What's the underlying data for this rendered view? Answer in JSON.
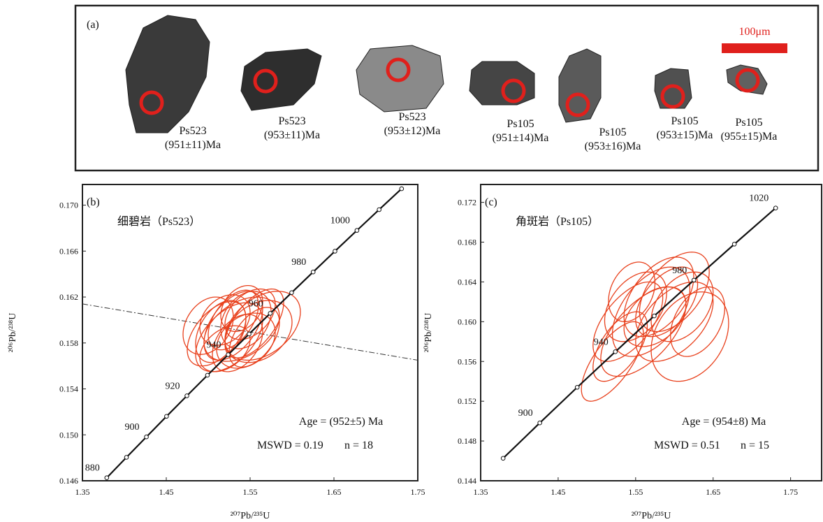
{
  "panel_a": {
    "label": "(a)",
    "scale_bar": "100μm",
    "grains": [
      {
        "sample": "Ps523",
        "age": "(951±11)Ma"
      },
      {
        "sample": "Ps523",
        "age": "(953±11)Ma"
      },
      {
        "sample": "Ps523",
        "age": "(953±12)Ma"
      },
      {
        "sample": "Ps105",
        "age": "(951±14)Ma"
      },
      {
        "sample": "Ps105",
        "age": "(953±16)Ma"
      },
      {
        "sample": "Ps105",
        "age": "(953±15)Ma"
      },
      {
        "sample": "Ps105",
        "age": "(955±15)Ma"
      }
    ]
  },
  "chart_data": [
    {
      "type": "concordia",
      "panel_label": "(b)",
      "title": "细碧岩（Ps523）",
      "x_label": "²⁰⁷Pb/²³⁵U",
      "y_label": "²⁰⁶Pb/²³⁸U",
      "xlim": [
        1.35,
        1.75
      ],
      "ylim": [
        0.146,
        0.1718
      ],
      "xticks": [
        1.35,
        1.45,
        1.55,
        1.65,
        1.75
      ],
      "yticks": [
        0.146,
        {
          "value": 0.15,
          "label": "0.150"
        },
        0.154,
        0.158,
        0.162,
        0.166,
        {
          "value": 0.17,
          "label": "0.170"
        }
      ],
      "grid": false,
      "concordia": {
        "ages": [
          880,
          890,
          900,
          910,
          920,
          930,
          940,
          950,
          960,
          970,
          980,
          990,
          1000,
          1010,
          1020
        ],
        "x": [
          1.379,
          1.4025,
          1.4263,
          1.4503,
          1.4746,
          1.4991,
          1.5238,
          1.5488,
          1.574,
          1.5995,
          1.6252,
          1.6512,
          1.6774,
          1.7039,
          1.7307
        ],
        "y": [
          0.14626,
          0.14804,
          0.14982,
          0.15161,
          0.1534,
          0.15519,
          0.15698,
          0.15878,
          0.16058,
          0.16238,
          0.16418,
          0.16599,
          0.1678,
          0.16961,
          0.17143
        ],
        "labels": [
          880,
          900,
          920,
          940,
          960,
          980,
          1000
        ]
      },
      "reference_line": {
        "x": [
          1.35,
          1.75
        ],
        "y": [
          0.1614,
          0.1565
        ]
      },
      "ellipses": {
        "color": "#e8401c",
        "x": [
          1.515,
          1.53,
          1.545,
          1.525,
          1.54,
          1.555,
          1.52,
          1.535,
          1.56,
          1.51,
          1.55,
          1.545,
          1.53,
          1.565,
          1.52,
          1.555,
          1.54,
          1.5
        ],
        "y": [
          0.159,
          0.1595,
          0.16,
          0.1585,
          0.1592,
          0.1597,
          0.16,
          0.158,
          0.159,
          0.1588,
          0.1605,
          0.1582,
          0.16,
          0.1595,
          0.1575,
          0.1585,
          0.161,
          0.1595
        ],
        "x_err": [
          0.03,
          0.035,
          0.03,
          0.04,
          0.045,
          0.035,
          0.03,
          0.03,
          0.04,
          0.035,
          0.03,
          0.035,
          0.03,
          0.045,
          0.03,
          0.03,
          0.025,
          0.03
        ],
        "y_err": [
          0.0027,
          0.003,
          0.0025,
          0.003,
          0.0028,
          0.003,
          0.0022,
          0.0025,
          0.0027,
          0.0028,
          0.0022,
          0.0024,
          0.0026,
          0.003,
          0.002,
          0.0026,
          0.002,
          0.0025
        ],
        "rho": [
          0.4,
          0.5,
          0.3,
          0.5,
          0.4,
          0.6,
          0.3,
          0.4,
          0.3,
          0.5,
          0.4,
          0.3,
          0.5,
          0.4,
          0.4,
          0.5,
          0.3,
          0.3
        ]
      },
      "annotations": {
        "age": "Age = (952±5) Ma",
        "mswd": "MSWD = 0.19",
        "n": "n = 18"
      }
    },
    {
      "type": "concordia",
      "panel_label": "(c)",
      "title": "角斑岩（Ps105）",
      "x_label": "²⁰⁷Pb/²³⁵U",
      "y_label": "²⁰⁶Pb/²³⁸U",
      "xlim": [
        1.35,
        1.79
      ],
      "ylim": [
        0.144,
        0.1738
      ],
      "xticks": [
        1.35,
        1.45,
        1.55,
        1.65,
        1.75
      ],
      "yticks": [
        0.144,
        0.148,
        0.152,
        0.156,
        {
          "value": 0.16,
          "label": "0.160"
        },
        0.164,
        0.168,
        0.172
      ],
      "grid": false,
      "concordia": {
        "ages": [
          880,
          900,
          920,
          940,
          960,
          980,
          1000,
          1020
        ],
        "x": [
          1.379,
          1.4263,
          1.4746,
          1.5238,
          1.574,
          1.6252,
          1.6774,
          1.7307
        ],
        "y": [
          0.14626,
          0.14982,
          0.1534,
          0.15698,
          0.16058,
          0.16418,
          0.1678,
          0.17143
        ],
        "labels": [
          900,
          940,
          980,
          1020
        ]
      },
      "ellipses": {
        "color": "#e8401c",
        "x": [
          1.54,
          1.57,
          1.59,
          1.56,
          1.6,
          1.62,
          1.53,
          1.58,
          1.55,
          1.6,
          1.52,
          1.575,
          1.61,
          1.545,
          1.63
        ],
        "y": [
          0.16,
          0.161,
          0.162,
          0.159,
          0.16,
          0.1585,
          0.1575,
          0.1625,
          0.1615,
          0.163,
          0.156,
          0.1605,
          0.1615,
          0.163,
          0.16
        ],
        "x_err": [
          0.045,
          0.05,
          0.04,
          0.055,
          0.05,
          0.05,
          0.035,
          0.045,
          0.04,
          0.045,
          0.04,
          0.04,
          0.04,
          0.03,
          0.035
        ],
        "y_err": [
          0.004,
          0.0045,
          0.0035,
          0.0045,
          0.004,
          0.0045,
          0.0035,
          0.004,
          0.0035,
          0.004,
          0.004,
          0.003,
          0.0035,
          0.003,
          0.0035
        ],
        "rho": [
          0.6,
          0.5,
          0.5,
          0.6,
          0.5,
          0.3,
          0.6,
          0.5,
          0.4,
          0.5,
          0.7,
          0.4,
          0.4,
          0.3,
          0.4
        ]
      },
      "annotations": {
        "age": "Age = (954±8) Ma",
        "mswd": "MSWD = 0.51",
        "n": "n = 15"
      }
    }
  ]
}
